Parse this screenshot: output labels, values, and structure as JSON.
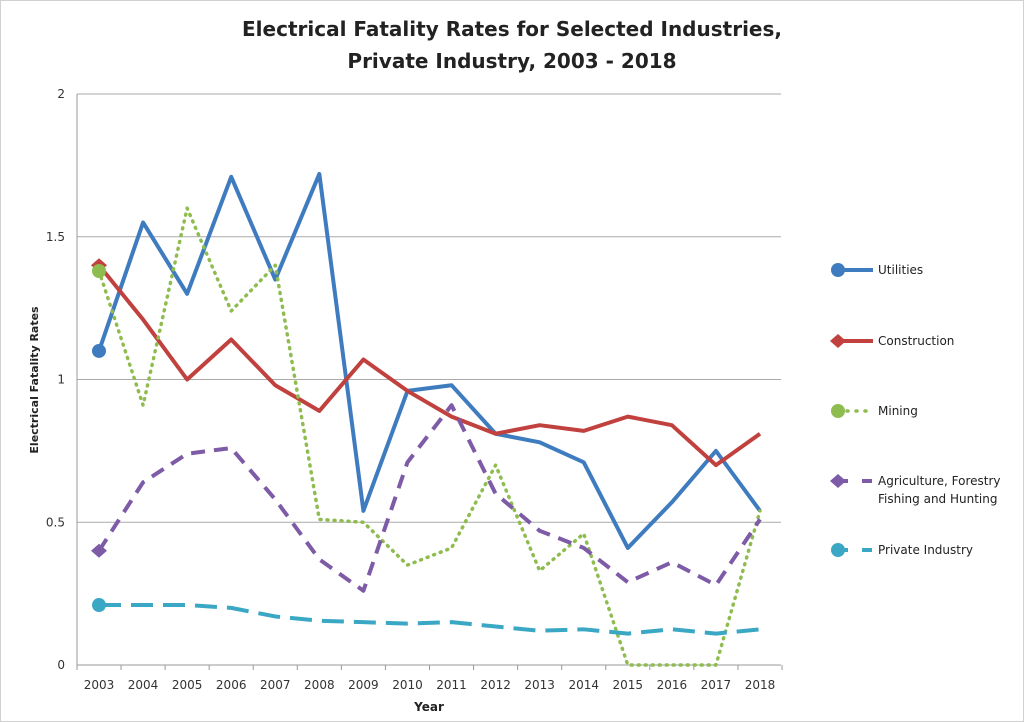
{
  "chart_data": {
    "type": "line",
    "title": [
      "Electrical Fatality Rates for Selected Industries,",
      "Private Industry, 2003 - 2018"
    ],
    "xlabel": "Year",
    "ylabel": "Electrical Fatality Rates",
    "ylim": [
      0,
      2
    ],
    "yticks": [
      "0",
      "0.5",
      "1",
      "1.5",
      "2"
    ],
    "grid": true,
    "legend_position": "right",
    "x": [
      "2003",
      "2004",
      "2005",
      "2006",
      "2007",
      "2008",
      "2009",
      "2010",
      "2011",
      "2012",
      "2013",
      "2014",
      "2015",
      "2016",
      "2017",
      "2018"
    ],
    "series": [
      {
        "name": "Utilities",
        "color": "#3f7cbf",
        "style": "solid",
        "marker": "circle",
        "values": [
          1.1,
          1.55,
          1.3,
          1.71,
          1.35,
          1.72,
          0.54,
          0.96,
          0.98,
          0.81,
          0.78,
          0.71,
          0.41,
          0.57,
          0.75,
          0.54
        ]
      },
      {
        "name": "Construction",
        "color": "#c0413e",
        "style": "solid",
        "marker": "diamond",
        "values": [
          1.4,
          1.21,
          1.0,
          1.14,
          0.98,
          0.89,
          1.07,
          0.96,
          0.87,
          0.81,
          0.84,
          0.82,
          0.87,
          0.84,
          0.7,
          0.81
        ]
      },
      {
        "name": "Mining",
        "color": "#8fbc4f",
        "style": "dotted",
        "marker": "circle",
        "values": [
          1.38,
          0.91,
          1.6,
          1.24,
          1.4,
          0.51,
          0.5,
          0.35,
          0.41,
          0.7,
          0.33,
          0.46,
          0.0,
          0.0,
          0.0,
          0.54
        ]
      },
      {
        "name": "Agriculture, Forestry Fishing and Hunting",
        "legend_lines": [
          "Agriculture, Forestry",
          "Fishing and Hunting"
        ],
        "color": "#7d5ba6",
        "style": "dashed",
        "marker": "diamond",
        "values": [
          0.4,
          0.64,
          0.74,
          0.76,
          0.58,
          0.37,
          0.26,
          0.71,
          0.91,
          0.6,
          0.47,
          0.41,
          0.29,
          0.36,
          0.28,
          0.51
        ]
      },
      {
        "name": "Private Industry",
        "color": "#3aa8c4",
        "style": "longdash",
        "marker": "circle",
        "values": [
          0.21,
          0.21,
          0.21,
          0.2,
          0.17,
          0.155,
          0.15,
          0.145,
          0.15,
          0.135,
          0.12,
          0.125,
          0.11,
          0.125,
          0.11,
          0.125
        ]
      }
    ]
  }
}
